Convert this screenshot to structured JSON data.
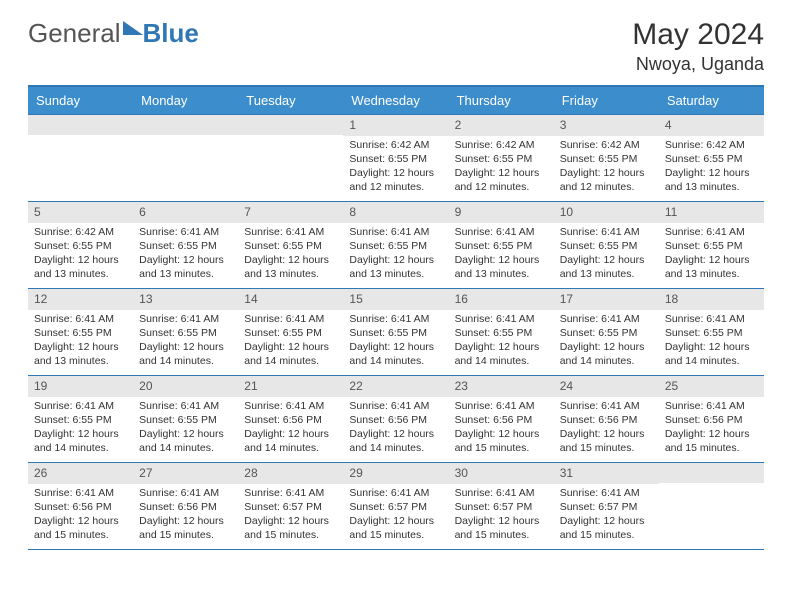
{
  "logo": {
    "part1": "General",
    "part2": "Blue"
  },
  "title": "May 2024",
  "location": "Nwoya, Uganda",
  "colors": {
    "header_bg": "#3c8dcc",
    "border": "#2f77b5",
    "daynum_bg": "#e7e7e7",
    "text": "#333333"
  },
  "day_headers": [
    "Sunday",
    "Monday",
    "Tuesday",
    "Wednesday",
    "Thursday",
    "Friday",
    "Saturday"
  ],
  "weeks": [
    [
      {
        "num": "",
        "lines": []
      },
      {
        "num": "",
        "lines": []
      },
      {
        "num": "",
        "lines": []
      },
      {
        "num": "1",
        "lines": [
          "Sunrise: 6:42 AM",
          "Sunset: 6:55 PM",
          "Daylight: 12 hours",
          "and 12 minutes."
        ]
      },
      {
        "num": "2",
        "lines": [
          "Sunrise: 6:42 AM",
          "Sunset: 6:55 PM",
          "Daylight: 12 hours",
          "and 12 minutes."
        ]
      },
      {
        "num": "3",
        "lines": [
          "Sunrise: 6:42 AM",
          "Sunset: 6:55 PM",
          "Daylight: 12 hours",
          "and 12 minutes."
        ]
      },
      {
        "num": "4",
        "lines": [
          "Sunrise: 6:42 AM",
          "Sunset: 6:55 PM",
          "Daylight: 12 hours",
          "and 13 minutes."
        ]
      }
    ],
    [
      {
        "num": "5",
        "lines": [
          "Sunrise: 6:42 AM",
          "Sunset: 6:55 PM",
          "Daylight: 12 hours",
          "and 13 minutes."
        ]
      },
      {
        "num": "6",
        "lines": [
          "Sunrise: 6:41 AM",
          "Sunset: 6:55 PM",
          "Daylight: 12 hours",
          "and 13 minutes."
        ]
      },
      {
        "num": "7",
        "lines": [
          "Sunrise: 6:41 AM",
          "Sunset: 6:55 PM",
          "Daylight: 12 hours",
          "and 13 minutes."
        ]
      },
      {
        "num": "8",
        "lines": [
          "Sunrise: 6:41 AM",
          "Sunset: 6:55 PM",
          "Daylight: 12 hours",
          "and 13 minutes."
        ]
      },
      {
        "num": "9",
        "lines": [
          "Sunrise: 6:41 AM",
          "Sunset: 6:55 PM",
          "Daylight: 12 hours",
          "and 13 minutes."
        ]
      },
      {
        "num": "10",
        "lines": [
          "Sunrise: 6:41 AM",
          "Sunset: 6:55 PM",
          "Daylight: 12 hours",
          "and 13 minutes."
        ]
      },
      {
        "num": "11",
        "lines": [
          "Sunrise: 6:41 AM",
          "Sunset: 6:55 PM",
          "Daylight: 12 hours",
          "and 13 minutes."
        ]
      }
    ],
    [
      {
        "num": "12",
        "lines": [
          "Sunrise: 6:41 AM",
          "Sunset: 6:55 PM",
          "Daylight: 12 hours",
          "and 13 minutes."
        ]
      },
      {
        "num": "13",
        "lines": [
          "Sunrise: 6:41 AM",
          "Sunset: 6:55 PM",
          "Daylight: 12 hours",
          "and 14 minutes."
        ]
      },
      {
        "num": "14",
        "lines": [
          "Sunrise: 6:41 AM",
          "Sunset: 6:55 PM",
          "Daylight: 12 hours",
          "and 14 minutes."
        ]
      },
      {
        "num": "15",
        "lines": [
          "Sunrise: 6:41 AM",
          "Sunset: 6:55 PM",
          "Daylight: 12 hours",
          "and 14 minutes."
        ]
      },
      {
        "num": "16",
        "lines": [
          "Sunrise: 6:41 AM",
          "Sunset: 6:55 PM",
          "Daylight: 12 hours",
          "and 14 minutes."
        ]
      },
      {
        "num": "17",
        "lines": [
          "Sunrise: 6:41 AM",
          "Sunset: 6:55 PM",
          "Daylight: 12 hours",
          "and 14 minutes."
        ]
      },
      {
        "num": "18",
        "lines": [
          "Sunrise: 6:41 AM",
          "Sunset: 6:55 PM",
          "Daylight: 12 hours",
          "and 14 minutes."
        ]
      }
    ],
    [
      {
        "num": "19",
        "lines": [
          "Sunrise: 6:41 AM",
          "Sunset: 6:55 PM",
          "Daylight: 12 hours",
          "and 14 minutes."
        ]
      },
      {
        "num": "20",
        "lines": [
          "Sunrise: 6:41 AM",
          "Sunset: 6:55 PM",
          "Daylight: 12 hours",
          "and 14 minutes."
        ]
      },
      {
        "num": "21",
        "lines": [
          "Sunrise: 6:41 AM",
          "Sunset: 6:56 PM",
          "Daylight: 12 hours",
          "and 14 minutes."
        ]
      },
      {
        "num": "22",
        "lines": [
          "Sunrise: 6:41 AM",
          "Sunset: 6:56 PM",
          "Daylight: 12 hours",
          "and 14 minutes."
        ]
      },
      {
        "num": "23",
        "lines": [
          "Sunrise: 6:41 AM",
          "Sunset: 6:56 PM",
          "Daylight: 12 hours",
          "and 15 minutes."
        ]
      },
      {
        "num": "24",
        "lines": [
          "Sunrise: 6:41 AM",
          "Sunset: 6:56 PM",
          "Daylight: 12 hours",
          "and 15 minutes."
        ]
      },
      {
        "num": "25",
        "lines": [
          "Sunrise: 6:41 AM",
          "Sunset: 6:56 PM",
          "Daylight: 12 hours",
          "and 15 minutes."
        ]
      }
    ],
    [
      {
        "num": "26",
        "lines": [
          "Sunrise: 6:41 AM",
          "Sunset: 6:56 PM",
          "Daylight: 12 hours",
          "and 15 minutes."
        ]
      },
      {
        "num": "27",
        "lines": [
          "Sunrise: 6:41 AM",
          "Sunset: 6:56 PM",
          "Daylight: 12 hours",
          "and 15 minutes."
        ]
      },
      {
        "num": "28",
        "lines": [
          "Sunrise: 6:41 AM",
          "Sunset: 6:57 PM",
          "Daylight: 12 hours",
          "and 15 minutes."
        ]
      },
      {
        "num": "29",
        "lines": [
          "Sunrise: 6:41 AM",
          "Sunset: 6:57 PM",
          "Daylight: 12 hours",
          "and 15 minutes."
        ]
      },
      {
        "num": "30",
        "lines": [
          "Sunrise: 6:41 AM",
          "Sunset: 6:57 PM",
          "Daylight: 12 hours",
          "and 15 minutes."
        ]
      },
      {
        "num": "31",
        "lines": [
          "Sunrise: 6:41 AM",
          "Sunset: 6:57 PM",
          "Daylight: 12 hours",
          "and 15 minutes."
        ]
      },
      {
        "num": "",
        "lines": []
      }
    ]
  ]
}
